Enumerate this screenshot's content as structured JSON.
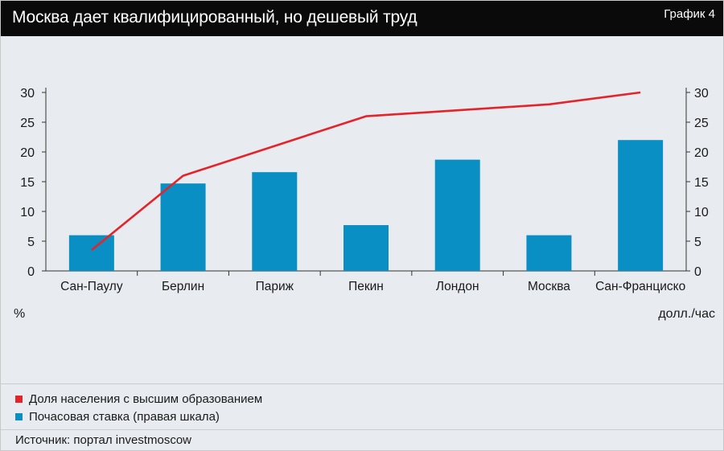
{
  "header": {
    "title": "Москва дает квалифицированный, но дешевый труд",
    "graph_label": "График 4"
  },
  "chart_data": {
    "type": "bar",
    "categories": [
      "Сан-Паулу",
      "Берлин",
      "Париж",
      "Пекин",
      "Лондон",
      "Москва",
      "Сан-Франциско"
    ],
    "series": [
      {
        "name": "Доля населения с высшим образованием",
        "type": "line",
        "axis": "left",
        "color": "#e3242b",
        "values": [
          3.5,
          16,
          21,
          26,
          27,
          28,
          30
        ]
      },
      {
        "name": "Почасовая ставка (правая шкала)",
        "type": "bar",
        "axis": "right",
        "color": "#0a8fc4",
        "values": [
          6,
          14.7,
          16.6,
          7.7,
          18.7,
          6,
          22
        ]
      }
    ],
    "ylim_left": [
      0,
      30
    ],
    "ylim_right": [
      0,
      30
    ],
    "yticks": [
      0,
      5,
      10,
      15,
      20,
      25,
      30
    ],
    "ylabel_left": "%",
    "ylabel_right": "долл./час",
    "legend_position": "bottom-left",
    "grid": false
  },
  "legend": [
    {
      "label": "Доля населения с высшим образованием",
      "color": "#e3242b"
    },
    {
      "label": "Почасовая ставка (правая шкала)",
      "color": "#0a8fc4"
    }
  ],
  "source": "Источник: портал investmoscow"
}
